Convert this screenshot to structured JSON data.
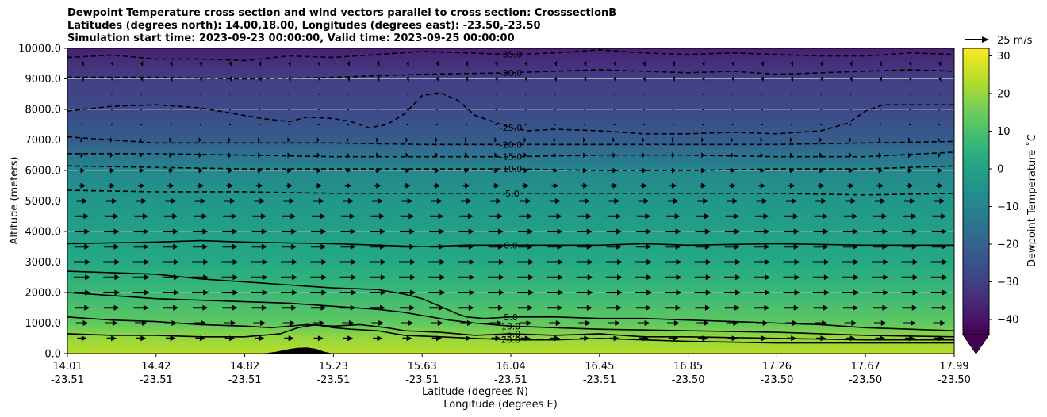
{
  "chart_data": {
    "type": "contour",
    "title_lines": [
      "Dewpoint Temperature cross section and wind vectors parallel to cross section: CrosssectionB",
      "Latitudes (degrees north): 14.00,18.00, Longitudes (degrees east): -23.50,-23.50",
      "Simulation start time: 2023-09-23 00:00:00, Valid time: 2023-09-25 00:00:00"
    ],
    "ylabel": "Altitude (meters)",
    "xlabel_lat": "Latitude (degrees N)",
    "xlabel_lon": "Longitude (degrees E)",
    "ylim": [
      0,
      10000
    ],
    "yticks": [
      "0.0",
      "1000.0",
      "2000.0",
      "3000.0",
      "4000.0",
      "5000.0",
      "6000.0",
      "7000.0",
      "8000.0",
      "9000.0",
      "10000.0"
    ],
    "xticks": [
      {
        "pos": 0.0,
        "lat": "14.01",
        "lon": "-23.51"
      },
      {
        "pos": 0.1,
        "lat": "14.42",
        "lon": "-23.51"
      },
      {
        "pos": 0.2,
        "lat": "14.82",
        "lon": "-23.51"
      },
      {
        "pos": 0.3,
        "lat": "15.23",
        "lon": "-23.51"
      },
      {
        "pos": 0.4,
        "lat": "15.63",
        "lon": "-23.51"
      },
      {
        "pos": 0.5,
        "lat": "16.04",
        "lon": "-23.51"
      },
      {
        "pos": 0.6,
        "lat": "16.45",
        "lon": "-23.51"
      },
      {
        "pos": 0.7,
        "lat": "16.85",
        "lon": "-23.50"
      },
      {
        "pos": 0.8,
        "lat": "17.26",
        "lon": "-23.50"
      },
      {
        "pos": 0.9,
        "lat": "17.67",
        "lon": "-23.50"
      },
      {
        "pos": 1.0,
        "lat": "17.99",
        "lon": "-23.50"
      }
    ],
    "colorbar": {
      "label": "Dewpoint Temperature ˚C",
      "range": [
        -44,
        32
      ],
      "ticks": [
        "30",
        "20",
        "10",
        "0",
        "−10",
        "−20",
        "−30",
        "−40"
      ],
      "extend": "min",
      "colormap": "viridis"
    },
    "wind_reference": "25 m/s",
    "grid": true,
    "dewpoint_by_altitude": [
      {
        "alt": 0,
        "t": 24
      },
      {
        "alt": 500,
        "t": 20
      },
      {
        "alt": 1000,
        "t": 13
      },
      {
        "alt": 2000,
        "t": 7
      },
      {
        "alt": 3000,
        "t": 2
      },
      {
        "alt": 4000,
        "t": -1
      },
      {
        "alt": 5000,
        "t": -4
      },
      {
        "alt": 6000,
        "t": -9
      },
      {
        "alt": 6500,
        "t": -15
      },
      {
        "alt": 7000,
        "t": -22
      },
      {
        "alt": 8000,
        "t": -27
      },
      {
        "alt": 9000,
        "t": -30
      },
      {
        "alt": 10000,
        "t": -37
      }
    ],
    "contours": [
      {
        "level": -35,
        "label": "-35.0",
        "dashed": true,
        "pts": [
          [
            0,
            9700
          ],
          [
            0.05,
            9780
          ],
          [
            0.1,
            9650
          ],
          [
            0.15,
            9650
          ],
          [
            0.2,
            9600
          ],
          [
            0.25,
            9750
          ],
          [
            0.3,
            9700
          ],
          [
            0.35,
            9800
          ],
          [
            0.4,
            9900
          ],
          [
            0.45,
            9850
          ],
          [
            0.5,
            9800
          ],
          [
            0.55,
            9850
          ],
          [
            0.6,
            9950
          ],
          [
            0.65,
            9850
          ],
          [
            0.7,
            9800
          ],
          [
            0.75,
            9850
          ],
          [
            0.8,
            9800
          ],
          [
            0.85,
            9750
          ],
          [
            0.9,
            9750
          ],
          [
            0.95,
            9850
          ],
          [
            1,
            9800
          ]
        ]
      },
      {
        "level": -30,
        "label": "-30.0",
        "dashed": true,
        "pts": [
          [
            0,
            9050
          ],
          [
            0.05,
            9050
          ],
          [
            0.1,
            9050
          ],
          [
            0.2,
            9000
          ],
          [
            0.3,
            9050
          ],
          [
            0.4,
            9150
          ],
          [
            0.5,
            9200
          ],
          [
            0.55,
            9250
          ],
          [
            0.6,
            9300
          ],
          [
            0.65,
            9250
          ],
          [
            0.7,
            9200
          ],
          [
            0.75,
            9250
          ],
          [
            0.8,
            9150
          ],
          [
            0.85,
            9200
          ],
          [
            0.9,
            9250
          ],
          [
            0.95,
            9300
          ],
          [
            1,
            9250
          ]
        ]
      },
      {
        "level": -25,
        "label": "-25.0",
        "dashed": true,
        "pts": [
          [
            0,
            7950
          ],
          [
            0.05,
            8100
          ],
          [
            0.1,
            8150
          ],
          [
            0.15,
            8050
          ],
          [
            0.2,
            7800
          ],
          [
            0.22,
            7700
          ],
          [
            0.25,
            7600
          ],
          [
            0.27,
            7750
          ],
          [
            0.3,
            7700
          ],
          [
            0.32,
            7600
          ],
          [
            0.34,
            7400
          ],
          [
            0.36,
            7500
          ],
          [
            0.38,
            7850
          ],
          [
            0.4,
            8450
          ],
          [
            0.42,
            8550
          ],
          [
            0.44,
            8300
          ],
          [
            0.46,
            7800
          ],
          [
            0.5,
            7400
          ],
          [
            0.52,
            7300
          ],
          [
            0.55,
            7350
          ],
          [
            0.6,
            7300
          ],
          [
            0.65,
            7200
          ],
          [
            0.7,
            7200
          ],
          [
            0.75,
            7250
          ],
          [
            0.8,
            7200
          ],
          [
            0.85,
            7300
          ],
          [
            0.88,
            7550
          ],
          [
            0.9,
            7950
          ],
          [
            0.92,
            8150
          ],
          [
            0.95,
            8150
          ],
          [
            1,
            8150
          ]
        ]
      },
      {
        "level": -20,
        "label": "-20.0",
        "dashed": true,
        "pts": [
          [
            0,
            7100
          ],
          [
            0.05,
            7000
          ],
          [
            0.1,
            6900
          ],
          [
            0.2,
            6900
          ],
          [
            0.3,
            6900
          ],
          [
            0.4,
            6850
          ],
          [
            0.5,
            6850
          ],
          [
            0.6,
            6850
          ],
          [
            0.7,
            6850
          ],
          [
            0.8,
            6850
          ],
          [
            0.9,
            6900
          ],
          [
            1,
            6950
          ]
        ]
      },
      {
        "level": -15,
        "label": "-15.0",
        "dashed": true,
        "pts": [
          [
            0,
            6550
          ],
          [
            0.1,
            6550
          ],
          [
            0.2,
            6500
          ],
          [
            0.3,
            6450
          ],
          [
            0.4,
            6450
          ],
          [
            0.5,
            6450
          ],
          [
            0.6,
            6500
          ],
          [
            0.7,
            6500
          ],
          [
            0.8,
            6450
          ],
          [
            0.9,
            6450
          ],
          [
            1,
            6600
          ]
        ]
      },
      {
        "level": -10,
        "label": "-10.0",
        "dashed": true,
        "pts": [
          [
            0,
            6150
          ],
          [
            0.1,
            6100
          ],
          [
            0.2,
            6050
          ],
          [
            0.3,
            6050
          ],
          [
            0.4,
            6050
          ],
          [
            0.5,
            6050
          ],
          [
            0.6,
            6000
          ],
          [
            0.7,
            6000
          ],
          [
            0.8,
            6050
          ],
          [
            0.9,
            6050
          ],
          [
            1,
            6150
          ]
        ]
      },
      {
        "level": -5,
        "label": "-5.0",
        "dashed": true,
        "pts": [
          [
            0,
            5350
          ],
          [
            0.1,
            5300
          ],
          [
            0.2,
            5300
          ],
          [
            0.3,
            5250
          ],
          [
            0.4,
            5250
          ],
          [
            0.5,
            5250
          ],
          [
            0.6,
            5250
          ],
          [
            0.7,
            5250
          ],
          [
            0.8,
            5250
          ],
          [
            0.9,
            5200
          ],
          [
            1,
            5250
          ]
        ]
      },
      {
        "level": 0,
        "label": "0.0",
        "dashed": false,
        "pts": [
          [
            0,
            3600
          ],
          [
            0.1,
            3650
          ],
          [
            0.15,
            3700
          ],
          [
            0.2,
            3650
          ],
          [
            0.3,
            3600
          ],
          [
            0.35,
            3550
          ],
          [
            0.4,
            3500
          ],
          [
            0.45,
            3550
          ],
          [
            0.5,
            3550
          ],
          [
            0.6,
            3550
          ],
          [
            0.65,
            3600
          ],
          [
            0.7,
            3550
          ],
          [
            0.8,
            3600
          ],
          [
            0.9,
            3550
          ],
          [
            1,
            3550
          ]
        ]
      },
      {
        "level": 5,
        "label": "5.0",
        "dashed": false,
        "pts": [
          [
            0,
            2700
          ],
          [
            0.05,
            2650
          ],
          [
            0.1,
            2600
          ],
          [
            0.15,
            2450
          ],
          [
            0.2,
            2350
          ],
          [
            0.25,
            2250
          ],
          [
            0.3,
            2150
          ],
          [
            0.35,
            2100
          ],
          [
            0.38,
            1950
          ],
          [
            0.4,
            1800
          ],
          [
            0.42,
            1550
          ],
          [
            0.44,
            1300
          ],
          [
            0.45,
            1200
          ],
          [
            0.47,
            1150
          ],
          [
            0.5,
            1200
          ],
          [
            0.55,
            1200
          ],
          [
            0.6,
            1150
          ],
          [
            0.65,
            1150
          ],
          [
            0.7,
            1100
          ],
          [
            0.75,
            1050
          ],
          [
            0.8,
            1000
          ],
          [
            0.85,
            950
          ],
          [
            0.9,
            850
          ],
          [
            0.95,
            800
          ],
          [
            1,
            750
          ]
        ]
      },
      {
        "level": 10,
        "label": "10.0",
        "dashed": false,
        "pts": [
          [
            0,
            2000
          ],
          [
            0.05,
            1900
          ],
          [
            0.1,
            1800
          ],
          [
            0.15,
            1750
          ],
          [
            0.2,
            1700
          ],
          [
            0.25,
            1650
          ],
          [
            0.3,
            1550
          ],
          [
            0.35,
            1450
          ],
          [
            0.38,
            1350
          ],
          [
            0.4,
            1250
          ],
          [
            0.43,
            1100
          ],
          [
            0.46,
            1000
          ],
          [
            0.5,
            900
          ],
          [
            0.55,
            850
          ],
          [
            0.6,
            800
          ],
          [
            0.7,
            750
          ],
          [
            0.8,
            700
          ],
          [
            0.9,
            600
          ],
          [
            1,
            550
          ]
        ]
      },
      {
        "level": 15,
        "label": "15.0",
        "dashed": false,
        "pts": [
          [
            0,
            1200
          ],
          [
            0.05,
            1100
          ],
          [
            0.1,
            1050
          ],
          [
            0.15,
            950
          ],
          [
            0.2,
            900
          ],
          [
            0.23,
            850
          ],
          [
            0.27,
            950
          ],
          [
            0.3,
            900
          ],
          [
            0.33,
            950
          ],
          [
            0.36,
            850
          ],
          [
            0.38,
            750
          ],
          [
            0.42,
            700
          ],
          [
            0.46,
            600
          ],
          [
            0.5,
            650
          ],
          [
            0.55,
            600
          ],
          [
            0.6,
            650
          ],
          [
            0.65,
            550
          ],
          [
            0.7,
            550
          ],
          [
            0.8,
            500
          ],
          [
            0.9,
            450
          ],
          [
            1,
            450
          ]
        ]
      },
      {
        "level": 20,
        "label": "20.0",
        "dashed": false,
        "pts": [
          [
            0,
            650
          ],
          [
            0.05,
            600
          ],
          [
            0.1,
            600
          ],
          [
            0.15,
            550
          ],
          [
            0.2,
            550
          ],
          [
            0.24,
            650
          ],
          [
            0.26,
            850
          ],
          [
            0.28,
            950
          ],
          [
            0.3,
            850
          ],
          [
            0.32,
            800
          ],
          [
            0.35,
            750
          ],
          [
            0.38,
            600
          ],
          [
            0.42,
            550
          ],
          [
            0.46,
            500
          ],
          [
            0.5,
            450
          ],
          [
            0.55,
            450
          ],
          [
            0.6,
            500
          ],
          [
            0.65,
            450
          ],
          [
            0.7,
            400
          ],
          [
            0.8,
            350
          ],
          [
            0.9,
            350
          ],
          [
            1,
            350
          ]
        ]
      }
    ],
    "terrain": [
      [
        0.22,
        0
      ],
      [
        0.235,
        60
      ],
      [
        0.25,
        150
      ],
      [
        0.26,
        190
      ],
      [
        0.27,
        200
      ],
      [
        0.28,
        160
      ],
      [
        0.29,
        60
      ],
      [
        0.3,
        0
      ]
    ],
    "wind_rows": [
      {
        "alt": 500,
        "speed": 14
      },
      {
        "alt": 1000,
        "speed": 18
      },
      {
        "alt": 1500,
        "speed": 22
      },
      {
        "alt": 2000,
        "speed": 24
      },
      {
        "alt": 2500,
        "speed": 24
      },
      {
        "alt": 3000,
        "speed": 24
      },
      {
        "alt": 3500,
        "speed": 22
      },
      {
        "alt": 4000,
        "speed": 22
      },
      {
        "alt": 4500,
        "speed": 20
      },
      {
        "alt": 5000,
        "speed": 16
      },
      {
        "alt": 5500,
        "speed": 10
      },
      {
        "alt": 6000,
        "speed": 7
      },
      {
        "alt": 6500,
        "speed": 4
      },
      {
        "alt": 7000,
        "speed": 2
      },
      {
        "alt": 7500,
        "speed": 1
      },
      {
        "alt": 8000,
        "speed": 0
      },
      {
        "alt": 8500,
        "speed": -1
      },
      {
        "alt": 9000,
        "speed": -2
      },
      {
        "alt": 9500,
        "speed": -3
      }
    ]
  }
}
